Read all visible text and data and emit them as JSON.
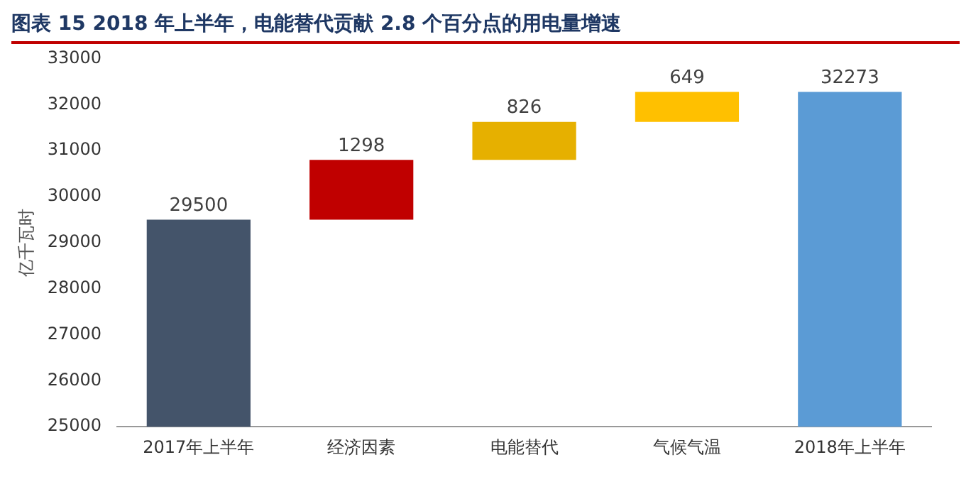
{
  "chart_data": {
    "type": "bar",
    "title": "图表 15  2018 年上半年，电能替代贡献 2.8 个百分点的用电量增速",
    "ylabel": "亿千瓦时",
    "categories": [
      "2017年上半年",
      "经济因素",
      "电能替代",
      "气候气温",
      "2018年上半年"
    ],
    "values": [
      29500,
      1298,
      826,
      649,
      32273
    ],
    "base": [
      null,
      29500,
      30798,
      31624,
      null
    ],
    "colors": [
      "#44546a",
      "#c00000",
      "#e6b000",
      "#ffc000",
      "#5b9bd5"
    ],
    "ylim": [
      25000,
      33000
    ],
    "yticks": [
      25000,
      26000,
      27000,
      28000,
      29000,
      30000,
      31000,
      32000,
      33000
    ],
    "grid": false,
    "legend": false,
    "data_labels": true
  }
}
